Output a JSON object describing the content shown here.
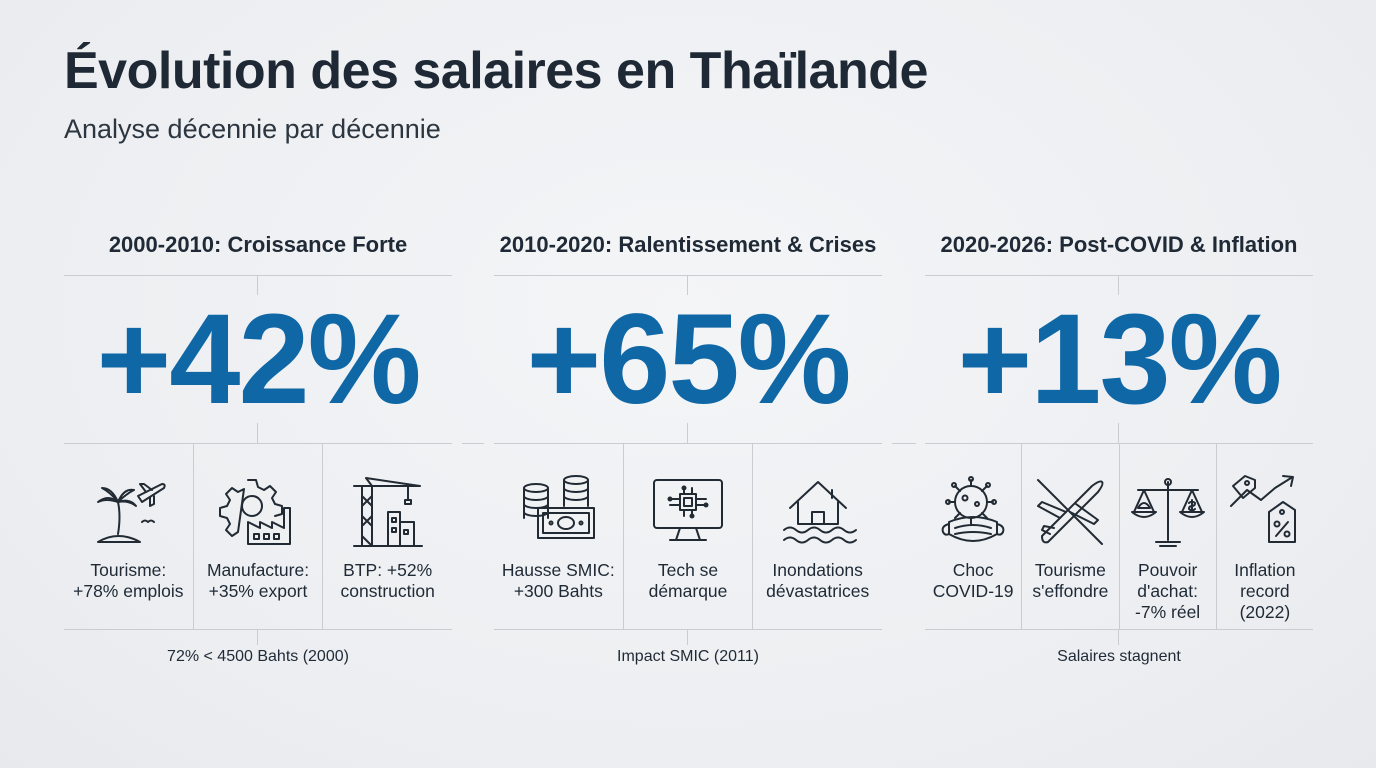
{
  "title": "Évolution des salaires en Thaïlande",
  "subtitle": "Analyse décennie par décennie",
  "periods": [
    {
      "title": "2000-2010: Croissance Forte",
      "value": "+42%",
      "items": [
        {
          "icon": "palm-tree-airplane-icon",
          "label": "Tourisme: +78% emplois"
        },
        {
          "icon": "gear-factory-icon",
          "label": "Manufacture: +35% export"
        },
        {
          "icon": "crane-building-icon",
          "label": "BTP: +52% construction"
        }
      ],
      "note": "72% < 4500 Bahts (2000)"
    },
    {
      "title": "2010-2020: Ralentissement & Crises",
      "value": "+65%",
      "items": [
        {
          "icon": "coins-banknote-icon",
          "label": "Hausse SMIC: +300 Bahts"
        },
        {
          "icon": "computer-chip-icon",
          "label": "Tech se démarque"
        },
        {
          "icon": "flooded-house-icon",
          "label": "Inondations dévastatrices"
        }
      ],
      "note": "Impact SMIC (2011)"
    },
    {
      "title": "2020-2026: Post-COVID & Inflation",
      "value": "+13%",
      "items": [
        {
          "icon": "virus-mask-icon",
          "label": "Choc COVID-19"
        },
        {
          "icon": "crossed-airplane-icon",
          "label": "Tourisme s'effondre"
        },
        {
          "icon": "balance-scale-icon",
          "label": "Pouvoir d'achat: -7% réel"
        },
        {
          "icon": "price-tag-arrow-icon",
          "label": "Inflation record (2022)"
        }
      ],
      "note": "Salaires stagnent"
    }
  ],
  "colors": {
    "accent": "#0f67a6",
    "text": "#1f2a36",
    "background": "#eef0f2",
    "line": "#c9cdd2"
  }
}
